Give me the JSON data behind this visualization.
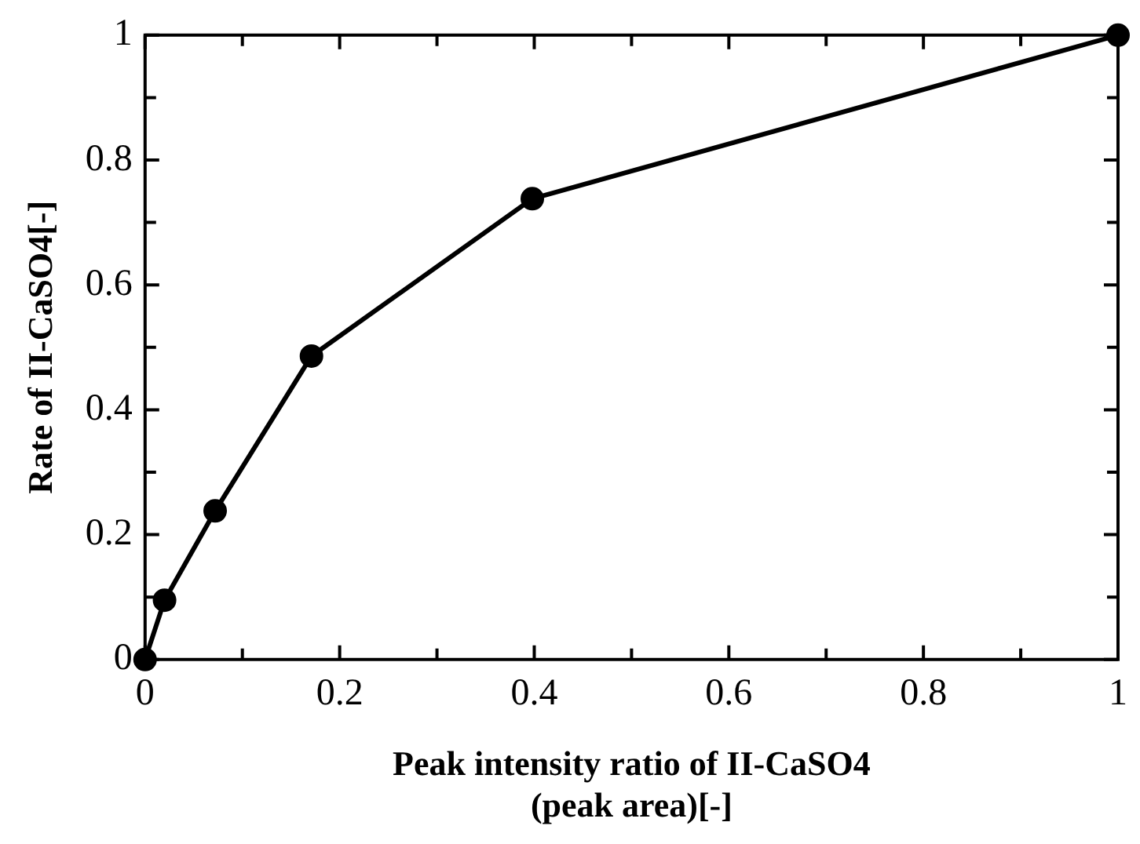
{
  "chart_data": {
    "type": "line",
    "xlabel": "Peak intensity ratio of II-CaSO4\n(peak area)[-]",
    "ylabel": "Rate of II-CaSO4[-]",
    "x": [
      0,
      0.02,
      0.072,
      0.171,
      0.398,
      1
    ],
    "series": [
      {
        "color": "#000000",
        "values": [
          0,
          0.095,
          0.238,
          0.486,
          0.738,
          1
        ]
      }
    ],
    "xlim": [
      0,
      1
    ],
    "ylim": [
      0,
      1
    ],
    "xticks": [
      0,
      {
        "value": 0.1,
        "label": null
      },
      0.2,
      {
        "value": 0.3,
        "label": null
      },
      0.4,
      {
        "value": 0.5,
        "label": null
      },
      0.6,
      {
        "value": 0.7,
        "label": null
      },
      0.8,
      {
        "value": 0.9,
        "label": null
      },
      1
    ],
    "yticks": [
      0,
      {
        "value": 0.1,
        "label": null
      },
      0.2,
      {
        "value": 0.3,
        "label": null
      },
      0.4,
      {
        "value": 0.5,
        "label": null
      },
      0.6,
      {
        "value": 0.7,
        "label": null
      },
      0.8,
      {
        "value": 0.9,
        "label": null
      },
      1
    ],
    "marker": "circle",
    "line_style": "solid",
    "grid": false,
    "legend": false
  }
}
